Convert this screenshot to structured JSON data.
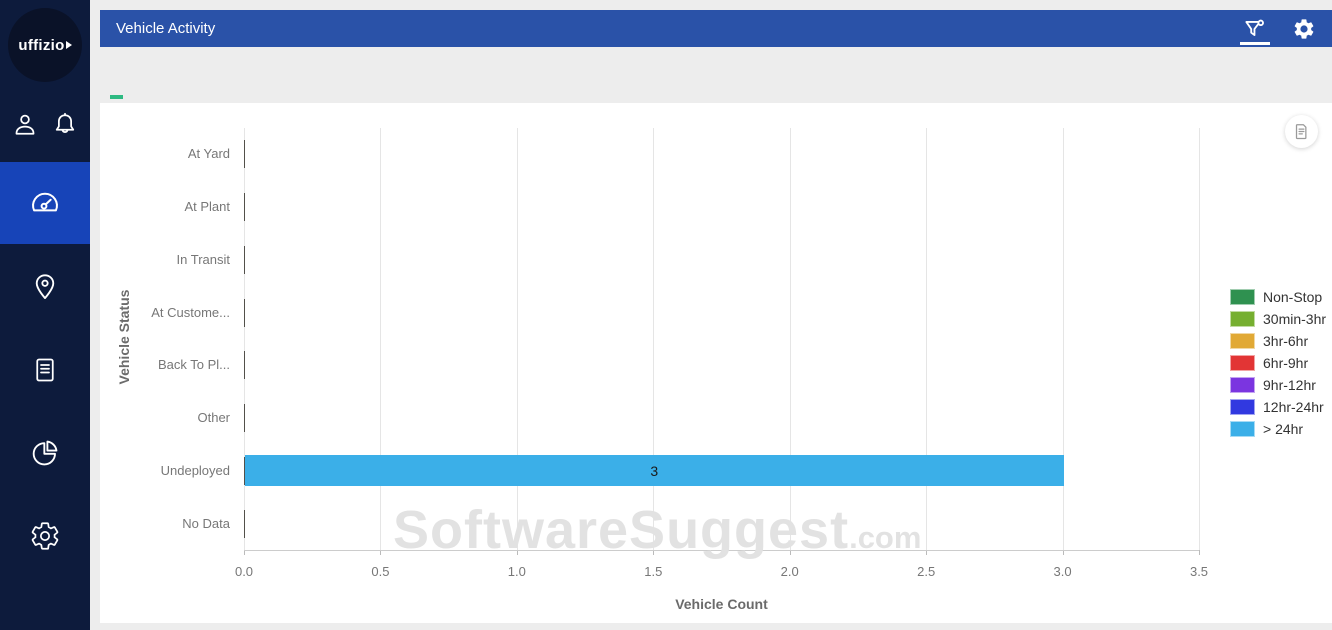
{
  "brand": {
    "logo_text": "uffizio"
  },
  "sidebar": {
    "accent_color": "#1744b8",
    "background": "#0d1b3c",
    "top_items": [
      {
        "name": "user",
        "icon": "user-icon"
      },
      {
        "name": "notifications",
        "icon": "bell-icon"
      }
    ],
    "nav_items": [
      {
        "name": "dashboard",
        "icon": "dashboard-icon",
        "active": true
      },
      {
        "name": "tracking",
        "icon": "map-pin-icon",
        "active": false
      },
      {
        "name": "reports",
        "icon": "document-icon",
        "active": false
      },
      {
        "name": "analytics",
        "icon": "pie-chart-icon",
        "active": false
      },
      {
        "name": "settings",
        "icon": "gear-icon",
        "active": false
      }
    ]
  },
  "header": {
    "title": "Vehicle Activity",
    "background": "#2a52a8",
    "actions": [
      {
        "name": "filter",
        "icon": "filter-icon",
        "active": true
      },
      {
        "name": "settings",
        "icon": "gear-icon",
        "active": false
      }
    ]
  },
  "chart_data": {
    "type": "bar",
    "orientation": "horizontal",
    "title": "Vehicle Activity",
    "categories": [
      "At Yard",
      "At Plant",
      "In Transit",
      "At Custome...",
      "Back To Pl...",
      "Other",
      "Undeployed",
      "No Data"
    ],
    "series": [
      {
        "name": "> 24hr",
        "color": "#3bafe8",
        "values": [
          0,
          0,
          0,
          0,
          0,
          0,
          3,
          0
        ]
      }
    ],
    "xlabel": "Vehicle Count",
    "ylabel": "Vehicle Status",
    "xlim": [
      0,
      3.5
    ],
    "x_ticks": [
      "0.0",
      "0.5",
      "1.0",
      "1.5",
      "2.0",
      "2.5",
      "3.0",
      "3.5"
    ],
    "grid": true,
    "legend_position": "right",
    "legend": [
      {
        "label": "Non-Stop",
        "color": "#2f9150"
      },
      {
        "label": "30min-3hr",
        "color": "#76af30"
      },
      {
        "label": "3hr-6hr",
        "color": "#e1a935"
      },
      {
        "label": "6hr-9hr",
        "color": "#e23535"
      },
      {
        "label": "9hr-12hr",
        "color": "#7b35e0"
      },
      {
        "label": "12hr-24hr",
        "color": "#3139e0"
      },
      {
        "label": "> 24hr",
        "color": "#3bafe8"
      }
    ]
  },
  "watermark": {
    "text": "SoftwareSuggest",
    "suffix": ".com"
  }
}
